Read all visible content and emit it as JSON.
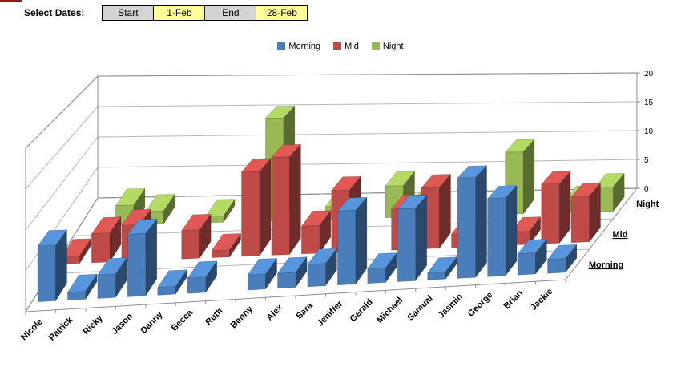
{
  "controls": {
    "label": "Select Dates:",
    "start_button": "Start",
    "start_value": "1-Feb",
    "end_button": "End",
    "end_value": "28-Feb"
  },
  "chart_data": {
    "type": "bar",
    "subtype": "3d-column-depth",
    "title": "",
    "xlabel": "",
    "ylabel": "",
    "categories": [
      "Nicole",
      "Patrick",
      "Ricky",
      "Jason",
      "Danny",
      "Becca",
      "Ruth",
      "Benny",
      "Alex",
      "Sara",
      "Jeniffer",
      "Gerald",
      "Michael",
      "Samual",
      "Jasmin",
      "George",
      "Brian",
      "Jackie"
    ],
    "series": [
      {
        "name": "Morning",
        "color": "#4A7EBB",
        "values": [
          7,
          1,
          3,
          8,
          1,
          2,
          0,
          2,
          2,
          3,
          10,
          2,
          10,
          1,
          14,
          11,
          3,
          2
        ]
      },
      {
        "name": "Mid",
        "color": "#BE4B48",
        "values": [
          1,
          4,
          5,
          0,
          4,
          1,
          12,
          14,
          4,
          9,
          0,
          6,
          9,
          2,
          0,
          2,
          9,
          7
        ]
      },
      {
        "name": "Night",
        "color": "#98B954",
        "values": [
          0,
          3,
          2,
          0,
          1,
          0,
          16,
          0,
          2,
          0,
          5,
          3,
          0,
          0,
          10,
          0,
          2,
          4
        ]
      }
    ],
    "value_axis": {
      "min": 0,
      "max": 20,
      "ticks": [
        0,
        5,
        10,
        15,
        20
      ]
    },
    "series_axis_labels": [
      "Night",
      "Mid",
      "Morning"
    ],
    "legend_position": "top",
    "grid_color": "#b6b6b6",
    "edge_color": "#8c8c8c"
  }
}
